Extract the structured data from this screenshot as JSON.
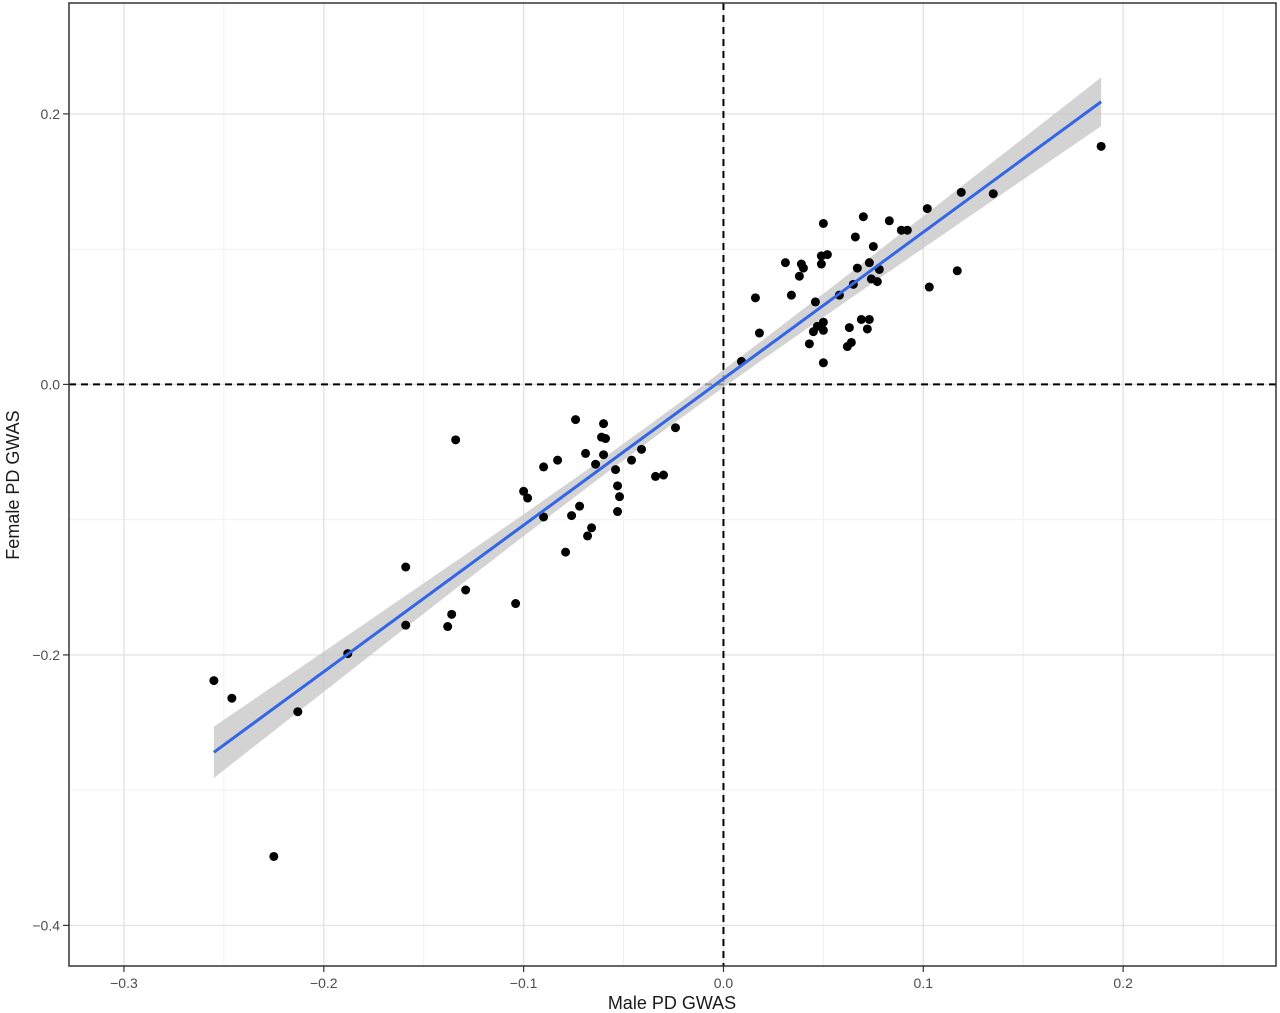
{
  "chart_data": {
    "type": "scatter",
    "title": "",
    "xlabel": "Male PD GWAS",
    "ylabel": "Female PD GWAS",
    "xlim": [
      -0.3275,
      0.2765
    ],
    "ylim": [
      -0.43,
      0.282
    ],
    "x_ticks": [
      -0.3,
      -0.2,
      -0.1,
      0.0,
      0.1,
      0.2
    ],
    "x_tick_labels": [
      "−0.3",
      "−0.2",
      "−0.1",
      "0.0",
      "0.1",
      "0.2"
    ],
    "y_ticks": [
      -0.4,
      -0.2,
      0.0,
      0.2
    ],
    "y_tick_labels": [
      "−0.4",
      "−0.2",
      "0.0",
      "0.2"
    ],
    "grid": true,
    "reference_lines": {
      "x": 0,
      "y": 0,
      "style": "dashed"
    },
    "regression": {
      "x": [
        -0.255,
        0.189
      ],
      "y": [
        -0.272,
        0.209
      ],
      "ci_half_width": [
        0.019,
        0.018
      ],
      "color": "#3366e6",
      "band_color": "#c4c4c4"
    },
    "point_color": "#000000",
    "points": [
      [
        -0.255,
        -0.219
      ],
      [
        -0.246,
        -0.232
      ],
      [
        -0.225,
        -0.349
      ],
      [
        -0.213,
        -0.242
      ],
      [
        -0.188,
        -0.199
      ],
      [
        -0.159,
        -0.135
      ],
      [
        -0.159,
        -0.178
      ],
      [
        -0.138,
        -0.179
      ],
      [
        -0.136,
        -0.17
      ],
      [
        -0.134,
        -0.041
      ],
      [
        -0.129,
        -0.152
      ],
      [
        -0.104,
        -0.162
      ],
      [
        -0.1,
        -0.079
      ],
      [
        -0.098,
        -0.084
      ],
      [
        -0.09,
        -0.061
      ],
      [
        -0.09,
        -0.098
      ],
      [
        -0.083,
        -0.056
      ],
      [
        -0.079,
        -0.124
      ],
      [
        -0.076,
        -0.097
      ],
      [
        -0.074,
        -0.026
      ],
      [
        -0.072,
        -0.09
      ],
      [
        -0.069,
        -0.051
      ],
      [
        -0.068,
        -0.112
      ],
      [
        -0.066,
        -0.106
      ],
      [
        -0.064,
        -0.059
      ],
      [
        -0.061,
        -0.039
      ],
      [
        -0.06,
        -0.029
      ],
      [
        -0.06,
        -0.052
      ],
      [
        -0.059,
        -0.04
      ],
      [
        -0.054,
        -0.063
      ],
      [
        -0.053,
        -0.075
      ],
      [
        -0.053,
        -0.094
      ],
      [
        -0.052,
        -0.083
      ],
      [
        -0.046,
        -0.056
      ],
      [
        -0.041,
        -0.048
      ],
      [
        -0.034,
        -0.068
      ],
      [
        -0.03,
        -0.067
      ],
      [
        -0.024,
        -0.032
      ],
      [
        0.009,
        0.017
      ],
      [
        0.016,
        0.064
      ],
      [
        0.018,
        0.038
      ],
      [
        0.031,
        0.09
      ],
      [
        0.034,
        0.066
      ],
      [
        0.038,
        0.08
      ],
      [
        0.039,
        0.089
      ],
      [
        0.04,
        0.086
      ],
      [
        0.043,
        0.03
      ],
      [
        0.045,
        0.039
      ],
      [
        0.046,
        0.061
      ],
      [
        0.047,
        0.043
      ],
      [
        0.049,
        0.089
      ],
      [
        0.049,
        0.095
      ],
      [
        0.05,
        0.016
      ],
      [
        0.05,
        0.04
      ],
      [
        0.05,
        0.046
      ],
      [
        0.05,
        0.119
      ],
      [
        0.052,
        0.096
      ],
      [
        0.058,
        0.066
      ],
      [
        0.062,
        0.028
      ],
      [
        0.063,
        0.042
      ],
      [
        0.064,
        0.031
      ],
      [
        0.065,
        0.074
      ],
      [
        0.066,
        0.109
      ],
      [
        0.067,
        0.086
      ],
      [
        0.069,
        0.048
      ],
      [
        0.07,
        0.124
      ],
      [
        0.072,
        0.041
      ],
      [
        0.073,
        0.048
      ],
      [
        0.073,
        0.09
      ],
      [
        0.074,
        0.078
      ],
      [
        0.075,
        0.102
      ],
      [
        0.077,
        0.076
      ],
      [
        0.078,
        0.085
      ],
      [
        0.083,
        0.121
      ],
      [
        0.089,
        0.114
      ],
      [
        0.092,
        0.114
      ],
      [
        0.102,
        0.13
      ],
      [
        0.103,
        0.072
      ],
      [
        0.117,
        0.084
      ],
      [
        0.119,
        0.142
      ],
      [
        0.135,
        0.141
      ],
      [
        0.189,
        0.176
      ]
    ]
  }
}
